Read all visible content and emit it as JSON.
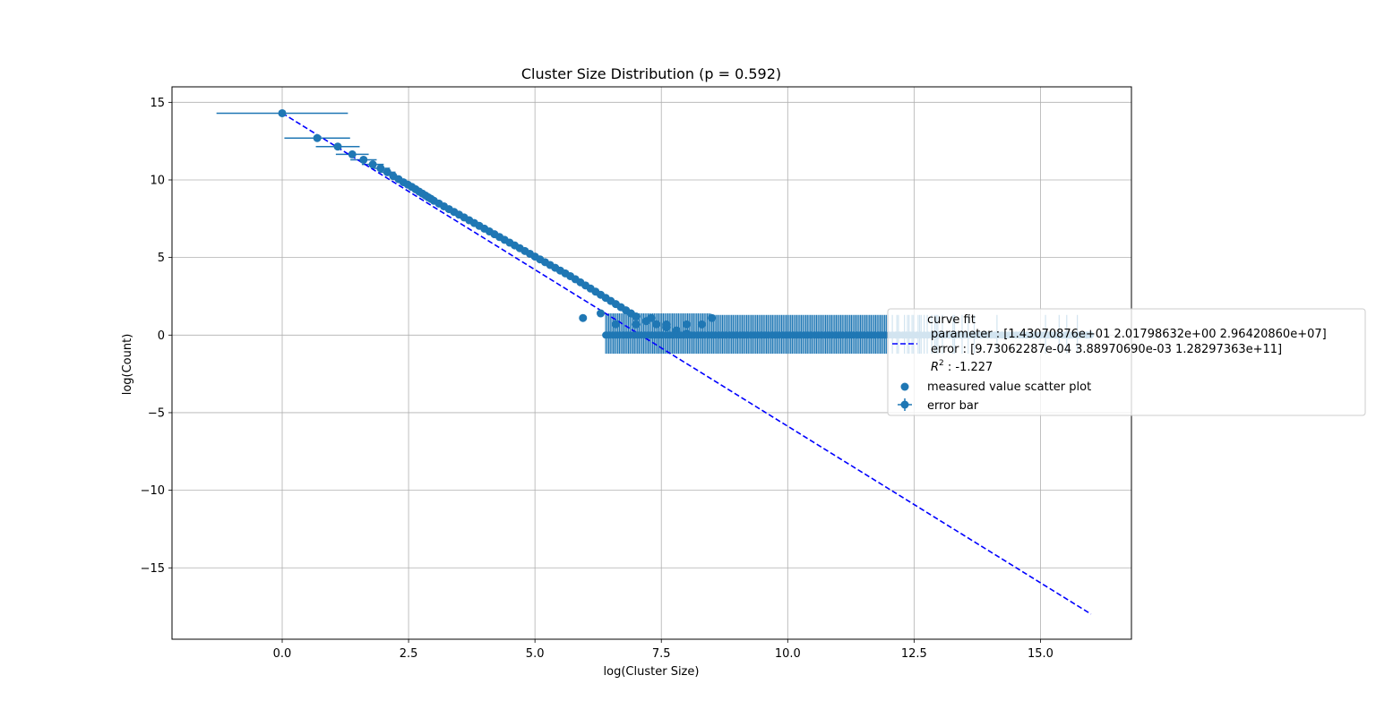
{
  "chart_data": {
    "type": "scatter",
    "title": "Cluster Size Distribution (p = 0.592)",
    "xlabel": "log(Cluster Size)",
    "ylabel": "log(Count)",
    "xlim": [
      -2.18,
      16.8
    ],
    "ylim": [
      -19.6,
      16.0
    ],
    "xticks": [
      0.0,
      2.5,
      5.0,
      7.5,
      10.0,
      12.5,
      15.0
    ],
    "xtick_labels": [
      "0.0",
      "2.5",
      "5.0",
      "7.5",
      "10.0",
      "12.5",
      "15.0"
    ],
    "yticks": [
      15,
      10,
      5,
      0,
      -5,
      -10,
      -15
    ],
    "ytick_labels": [
      "15",
      "10",
      "5",
      "0",
      "−5",
      "−10",
      "−15"
    ],
    "grid": true,
    "legend_position": "right",
    "colors": {
      "scatter": "#1f77b4",
      "fit": "#0000ff",
      "grid": "#b0b0b0"
    },
    "series": [
      {
        "name": "measured value scatter plot",
        "kind": "scatter",
        "points": [
          [
            0.0,
            14.3
          ],
          [
            0.693,
            12.7
          ],
          [
            1.099,
            12.15
          ],
          [
            1.386,
            11.65
          ],
          [
            1.609,
            11.3
          ],
          [
            1.792,
            11.0
          ],
          [
            1.946,
            10.75
          ],
          [
            2.079,
            10.5
          ],
          [
            2.197,
            10.25
          ],
          [
            2.303,
            10.05
          ],
          [
            2.398,
            9.85
          ],
          [
            2.485,
            9.7
          ],
          [
            2.565,
            9.55
          ],
          [
            2.639,
            9.4
          ],
          [
            2.708,
            9.25
          ],
          [
            2.773,
            9.12
          ],
          [
            2.833,
            9.0
          ],
          [
            2.89,
            8.88
          ],
          [
            2.944,
            8.78
          ],
          [
            3.0,
            8.66
          ],
          [
            3.1,
            8.48
          ],
          [
            3.2,
            8.3
          ],
          [
            3.3,
            8.12
          ],
          [
            3.4,
            7.94
          ],
          [
            3.5,
            7.76
          ],
          [
            3.6,
            7.58
          ],
          [
            3.7,
            7.4
          ],
          [
            3.8,
            7.22
          ],
          [
            3.9,
            7.04
          ],
          [
            4.0,
            6.86
          ],
          [
            4.1,
            6.68
          ],
          [
            4.2,
            6.5
          ],
          [
            4.3,
            6.32
          ],
          [
            4.4,
            6.14
          ],
          [
            4.5,
            5.96
          ],
          [
            4.6,
            5.78
          ],
          [
            4.7,
            5.6
          ],
          [
            4.8,
            5.42
          ],
          [
            4.9,
            5.24
          ],
          [
            5.0,
            5.06
          ],
          [
            5.1,
            4.88
          ],
          [
            5.2,
            4.7
          ],
          [
            5.3,
            4.52
          ],
          [
            5.4,
            4.34
          ],
          [
            5.5,
            4.16
          ],
          [
            5.6,
            3.98
          ],
          [
            5.7,
            3.8
          ],
          [
            5.8,
            3.6
          ],
          [
            5.9,
            3.4
          ],
          [
            6.0,
            3.2
          ],
          [
            6.1,
            3.0
          ],
          [
            6.2,
            2.8
          ],
          [
            6.3,
            2.6
          ],
          [
            6.4,
            2.4
          ],
          [
            6.5,
            2.2
          ],
          [
            6.6,
            2.0
          ],
          [
            6.7,
            1.8
          ],
          [
            6.8,
            1.6
          ],
          [
            6.9,
            1.4
          ],
          [
            7.0,
            1.2
          ],
          [
            7.2,
            0.9
          ],
          [
            7.4,
            0.7
          ],
          [
            7.6,
            0.5
          ],
          [
            7.8,
            0.3
          ],
          [
            8.0,
            0.1
          ],
          [
            5.95,
            1.1
          ],
          [
            6.3,
            1.4
          ],
          [
            6.6,
            0.7
          ],
          [
            7.0,
            0.69
          ],
          [
            7.3,
            1.1
          ],
          [
            7.6,
            0.69
          ],
          [
            8.0,
            0.69
          ],
          [
            8.3,
            0.69
          ],
          [
            8.5,
            1.1
          ]
        ]
      },
      {
        "name": "curve fit",
        "kind": "line",
        "style": "dashed",
        "x_range": [
          0.0,
          16.0
        ],
        "parameters": [
          14.3070876,
          2.01798632,
          29642086.0
        ]
      },
      {
        "name": "error bar",
        "kind": "errorbar"
      }
    ],
    "legend": {
      "header": "curve fit",
      "parameter_line": "parameter : [1.43070876e+01 2.01798632e+00 2.96420860e+07]",
      "error_line": "error : [9.73062287e-04 3.88970690e-03 1.28297363e+11]",
      "r2_label": "R",
      "r2_sup": "2",
      "r2_value": " : -1.227",
      "scatter_label": "measured value scatter plot",
      "errorbar_label": "error bar"
    }
  }
}
